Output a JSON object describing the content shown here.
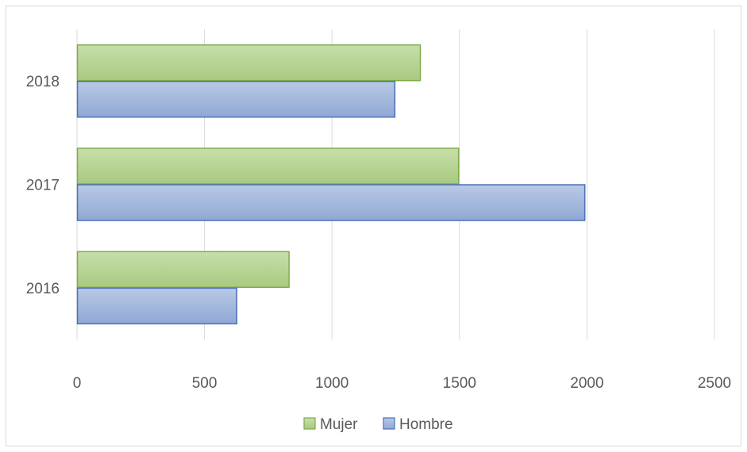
{
  "chart_data": {
    "type": "bar",
    "orientation": "horizontal",
    "categories": [
      "2016",
      "2017",
      "2018"
    ],
    "series": [
      {
        "name": "Mujer",
        "values": [
          830,
          1495,
          1345
        ],
        "color": "#a9c97f",
        "stroke": "#7fab4a"
      },
      {
        "name": "Hombre",
        "values": [
          625,
          1990,
          1245
        ],
        "color": "#9db2d8",
        "stroke": "#4a72b5"
      }
    ],
    "x_ticks": [
      0,
      500,
      1000,
      1500,
      2000,
      2500
    ],
    "x_tick_labels": [
      "0",
      "500",
      "1000",
      "1500",
      "2000",
      "2500"
    ],
    "xlim": [
      0,
      2500
    ],
    "gridlines": true,
    "legend_position": "bottom",
    "title": "",
    "xlabel": "",
    "ylabel": ""
  }
}
